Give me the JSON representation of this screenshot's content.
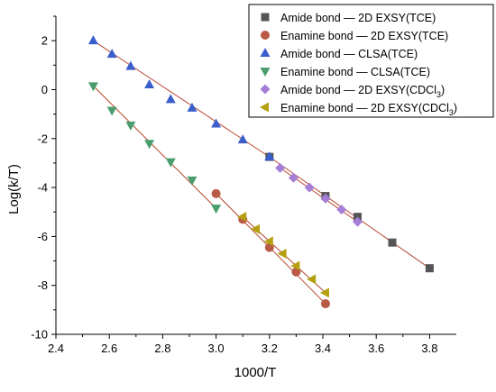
{
  "chart_data": {
    "type": "scatter",
    "xlabel": "1000/T",
    "ylabel": "Log(k/T)",
    "xlim": [
      2.4,
      3.9
    ],
    "ylim": [
      -10,
      3
    ],
    "xticks": [
      "2.4",
      "2.6",
      "2.8",
      "3.0",
      "3.2",
      "3.4",
      "3.6",
      "3.8"
    ],
    "yticks": [
      "2",
      "0",
      "-2",
      "-4",
      "-6",
      "-8",
      "-10"
    ],
    "legend_position": "top-right",
    "fit_line_color": "#b5472f",
    "series": [
      {
        "name": "Amide bond — 2D EXSY(TCE)",
        "legend_parts": [
          {
            "t": "Amide bond — 2D EXSY(TCE)",
            "sub": false
          }
        ],
        "marker": "square",
        "color": "#555555",
        "x": [
          3.2,
          3.41,
          3.53,
          3.66,
          3.8
        ],
        "y": [
          -2.75,
          -4.35,
          -5.2,
          -6.25,
          -7.3
        ]
      },
      {
        "name": "Enamine bond — 2D EXSY(TCE)",
        "legend_parts": [
          {
            "t": "Enamine bond — 2D EXSY(TCE)",
            "sub": false
          }
        ],
        "marker": "circle",
        "color": "#b85a45",
        "x": [
          3.0,
          3.1,
          3.2,
          3.3,
          3.41
        ],
        "y": [
          -4.25,
          -5.3,
          -6.45,
          -7.45,
          -8.75
        ]
      },
      {
        "name": "Amide bond — CLSA(TCE)",
        "legend_parts": [
          {
            "t": "Amide bond — CLSA(TCE)",
            "sub": false
          }
        ],
        "marker": "triangle-up",
        "color": "#3a5fcd",
        "x": [
          2.54,
          2.61,
          2.68,
          2.75,
          2.83,
          2.91,
          3.0,
          3.1,
          3.2
        ],
        "y": [
          2.0,
          1.45,
          0.95,
          0.2,
          -0.4,
          -0.75,
          -1.4,
          -2.05,
          -2.75
        ]
      },
      {
        "name": "Enamine bond — CLSA(TCE)",
        "legend_parts": [
          {
            "t": "Enamine bond — CLSA(TCE)",
            "sub": false
          }
        ],
        "marker": "triangle-down",
        "color": "#4a9e6e",
        "x": [
          2.54,
          2.61,
          2.68,
          2.75,
          2.83,
          2.91,
          3.0
        ],
        "y": [
          0.15,
          -0.85,
          -1.45,
          -2.2,
          -2.95,
          -3.7,
          -4.85
        ]
      },
      {
        "name": "Amide bond — 2D EXSY(CDCl3)",
        "legend_parts": [
          {
            "t": "Amide bond — 2D EXSY(CDCl",
            "sub": false
          },
          {
            "t": "3",
            "sub": true
          },
          {
            "t": ")",
            "sub": false
          }
        ],
        "marker": "diamond",
        "color": "#a67ed8",
        "x": [
          3.24,
          3.29,
          3.35,
          3.41,
          3.47,
          3.53
        ],
        "y": [
          -3.2,
          -3.6,
          -4.0,
          -4.45,
          -4.9,
          -5.4
        ]
      },
      {
        "name": "Enamine bond — 2D EXSY(CDCl3)",
        "legend_parts": [
          {
            "t": "Enamine bond — 2D EXSY(CDCl",
            "sub": false
          },
          {
            "t": "3",
            "sub": true
          },
          {
            "t": ")",
            "sub": false
          }
        ],
        "marker": "triangle-left",
        "color": "#b5a012",
        "x": [
          3.1,
          3.15,
          3.2,
          3.25,
          3.3,
          3.36,
          3.41
        ],
        "y": [
          -5.2,
          -5.7,
          -6.2,
          -6.7,
          -7.2,
          -7.75,
          -8.3
        ]
      }
    ],
    "fit_lines": [
      {
        "x": [
          3.2,
          3.8
        ],
        "y": [
          -2.75,
          -7.3
        ]
      },
      {
        "x": [
          3.0,
          3.41
        ],
        "y": [
          -4.25,
          -8.75
        ]
      },
      {
        "x": [
          2.54,
          3.2
        ],
        "y": [
          2.0,
          -2.75
        ]
      },
      {
        "x": [
          2.54,
          3.0
        ],
        "y": [
          0.15,
          -4.85
        ]
      },
      {
        "x": [
          3.24,
          3.53
        ],
        "y": [
          -3.2,
          -5.4
        ]
      },
      {
        "x": [
          3.1,
          3.41
        ],
        "y": [
          -5.2,
          -8.3
        ]
      }
    ]
  }
}
